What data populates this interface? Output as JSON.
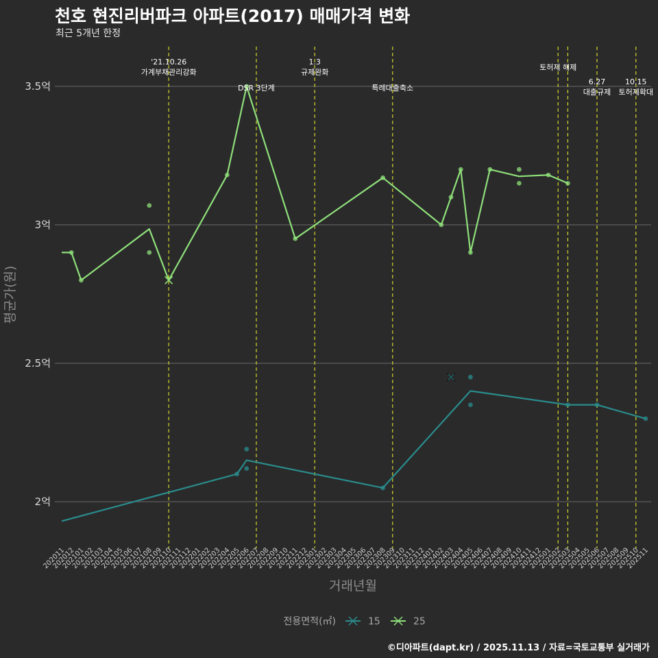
{
  "title": "천호 현진리버파크 아파트(2017) 매매가격 변화",
  "subtitle": "최근 5개년 한정",
  "caption": "©디아파트(dapt.kr) / 2025.11.13 / 자료=국토교통부 실거래가",
  "colors": {
    "background": "#2a2a2b",
    "grid": "#6b6b6b",
    "vline": "#d6d62b",
    "series_15": "#2a8c8c",
    "series_25": "#8fe07a"
  },
  "chart_data": {
    "type": "line",
    "xlabel": "거래년월",
    "ylabel": "평균가(원)",
    "ylim": [
      1.85,
      3.65
    ],
    "y_ticks": [
      {
        "value": 2.0,
        "label": "2억"
      },
      {
        "value": 2.5,
        "label": "2.5억"
      },
      {
        "value": 3.0,
        "label": "3억"
      },
      {
        "value": 3.5,
        "label": "3.5억"
      }
    ],
    "categories": [
      "202011",
      "202012",
      "202101",
      "202102",
      "202103",
      "202104",
      "202105",
      "202106",
      "202107",
      "202108",
      "202109",
      "202110",
      "202111",
      "202112",
      "202201",
      "202202",
      "202203",
      "202204",
      "202205",
      "202206",
      "202207",
      "202208",
      "202209",
      "202210",
      "202211",
      "202212",
      "202301",
      "202302",
      "202303",
      "202304",
      "202305",
      "202306",
      "202307",
      "202308",
      "202309",
      "202310",
      "202311",
      "202312",
      "202401",
      "202402",
      "202403",
      "202404",
      "202405",
      "202406",
      "202407",
      "202408",
      "202409",
      "202410",
      "202411",
      "202412",
      "202501",
      "202502",
      "202503",
      "202504",
      "202505",
      "202506",
      "202507",
      "202508",
      "202509",
      "202510",
      "202511"
    ],
    "legend": {
      "title": "전용면적(㎡)",
      "position": "bottom"
    },
    "annotations": [
      {
        "month": "202110",
        "lines": [
          "'21.10.26",
          "가계부채관리강화"
        ],
        "row": 0
      },
      {
        "month": "202207",
        "lines": [
          "DSR 3단계"
        ],
        "row": 2
      },
      {
        "month": "202301",
        "lines": [
          "1.3",
          "규제완화"
        ],
        "row": 0
      },
      {
        "month": "202309",
        "lines": [
          "특례대출축소"
        ],
        "row": 2
      },
      {
        "month": "202502",
        "lines": [
          "토허제 해제"
        ],
        "row": 1
      },
      {
        "month": "202503",
        "lines": [],
        "row": 1
      },
      {
        "month": "202506",
        "lines": [
          "6.27",
          "대출규제"
        ],
        "row": 3
      },
      {
        "month": "202510",
        "lines": [
          "10.15",
          "토허제확대"
        ],
        "row": 3
      }
    ],
    "series": [
      {
        "name": "15",
        "color": "#2a8c8c",
        "line": [
          {
            "x": "202011",
            "y": 1.93
          },
          {
            "x": "202205",
            "y": 2.1
          },
          {
            "x": "202206",
            "y": 2.15
          },
          {
            "x": "202308",
            "y": 2.05
          },
          {
            "x": "202405",
            "y": 2.4
          },
          {
            "x": "202503",
            "y": 2.35
          },
          {
            "x": "202506",
            "y": 2.35
          },
          {
            "x": "202511",
            "y": 2.3
          }
        ],
        "points": [
          {
            "x": "202205",
            "y": 2.1
          },
          {
            "x": "202206",
            "y": 2.19
          },
          {
            "x": "202206",
            "y": 2.12
          },
          {
            "x": "202308",
            "y": 2.05
          },
          {
            "x": "202405",
            "y": 2.45
          },
          {
            "x": "202405",
            "y": 2.35
          },
          {
            "x": "202503",
            "y": 2.35
          },
          {
            "x": "202506",
            "y": 2.35
          },
          {
            "x": "202511",
            "y": 2.3
          }
        ],
        "highlight": {
          "x": "202403",
          "y": 2.45
        }
      },
      {
        "name": "25",
        "color": "#8fe07a",
        "line": [
          {
            "x": "202011",
            "y": 2.9
          },
          {
            "x": "202012",
            "y": 2.9
          },
          {
            "x": "202101",
            "y": 2.8
          },
          {
            "x": "202108",
            "y": 2.985
          },
          {
            "x": "202110",
            "y": 2.8
          },
          {
            "x": "202204",
            "y": 3.18
          },
          {
            "x": "202206",
            "y": 3.5
          },
          {
            "x": "202211",
            "y": 2.95
          },
          {
            "x": "202308",
            "y": 3.17
          },
          {
            "x": "202402",
            "y": 3.0
          },
          {
            "x": "202403",
            "y": 3.1
          },
          {
            "x": "202404",
            "y": 3.2
          },
          {
            "x": "202405",
            "y": 2.9
          },
          {
            "x": "202407",
            "y": 3.2
          },
          {
            "x": "202410",
            "y": 3.175
          },
          {
            "x": "202501",
            "y": 3.18
          },
          {
            "x": "202503",
            "y": 3.15
          }
        ],
        "points": [
          {
            "x": "202012",
            "y": 2.9
          },
          {
            "x": "202101",
            "y": 2.8
          },
          {
            "x": "202108",
            "y": 3.07
          },
          {
            "x": "202108",
            "y": 2.9
          },
          {
            "x": "202204",
            "y": 3.18
          },
          {
            "x": "202206",
            "y": 3.5
          },
          {
            "x": "202211",
            "y": 2.95
          },
          {
            "x": "202308",
            "y": 3.17
          },
          {
            "x": "202402",
            "y": 3.0
          },
          {
            "x": "202403",
            "y": 3.1
          },
          {
            "x": "202404",
            "y": 3.2
          },
          {
            "x": "202405",
            "y": 2.9
          },
          {
            "x": "202407",
            "y": 3.2
          },
          {
            "x": "202410",
            "y": 3.2
          },
          {
            "x": "202410",
            "y": 3.15
          },
          {
            "x": "202501",
            "y": 3.18
          },
          {
            "x": "202503",
            "y": 3.15
          }
        ],
        "highlight": {
          "x": "202110",
          "y": 2.8
        }
      }
    ]
  }
}
